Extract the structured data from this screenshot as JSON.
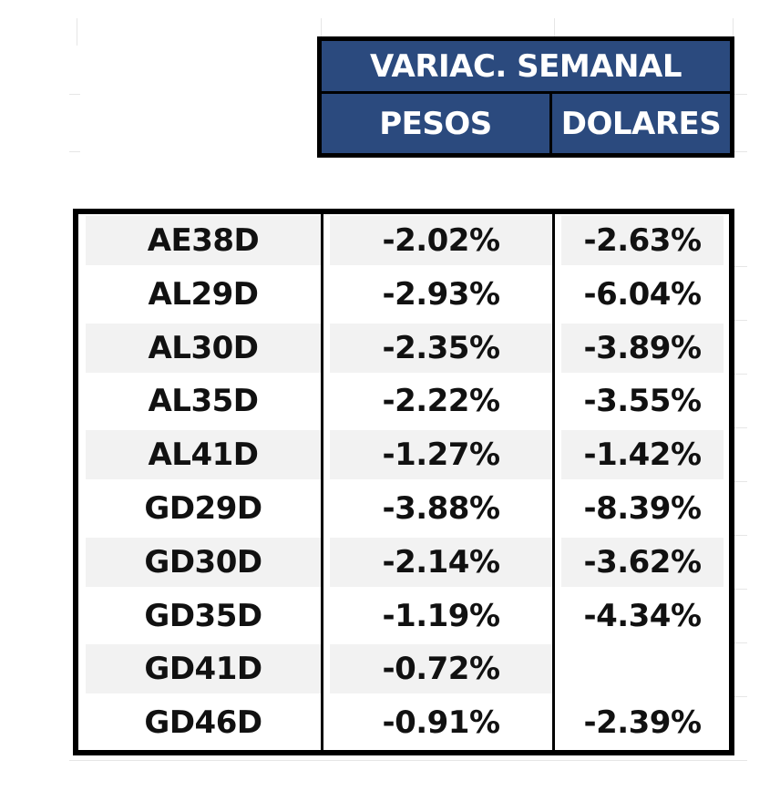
{
  "header": {
    "title": "VARIAC. SEMANAL",
    "col_pesos": "PESOS",
    "col_dolares": "DOLARES"
  },
  "rows": [
    {
      "ticker": "AE38D",
      "pesos": "-2.02%",
      "dolares": "-2.63%"
    },
    {
      "ticker": "AL29D",
      "pesos": "-2.93%",
      "dolares": "-6.04%"
    },
    {
      "ticker": "AL30D",
      "pesos": "-2.35%",
      "dolares": "-3.89%"
    },
    {
      "ticker": "AL35D",
      "pesos": "-2.22%",
      "dolares": "-3.55%"
    },
    {
      "ticker": "AL41D",
      "pesos": "-1.27%",
      "dolares": "-1.42%"
    },
    {
      "ticker": "GD29D",
      "pesos": "-3.88%",
      "dolares": "-8.39%"
    },
    {
      "ticker": "GD30D",
      "pesos": "-2.14%",
      "dolares": "-3.62%"
    },
    {
      "ticker": "GD35D",
      "pesos": "-1.19%",
      "dolares": "-4.34%"
    },
    {
      "ticker": "GD41D",
      "pesos": "-0.72%",
      "dolares": ""
    },
    {
      "ticker": "GD46D",
      "pesos": "-0.91%",
      "dolares": "-2.39%"
    }
  ],
  "colors": {
    "header_bg": "#2b4a7e",
    "header_text": "#ffffff",
    "row_shade": "#f2f2f2",
    "border": "#000000"
  }
}
